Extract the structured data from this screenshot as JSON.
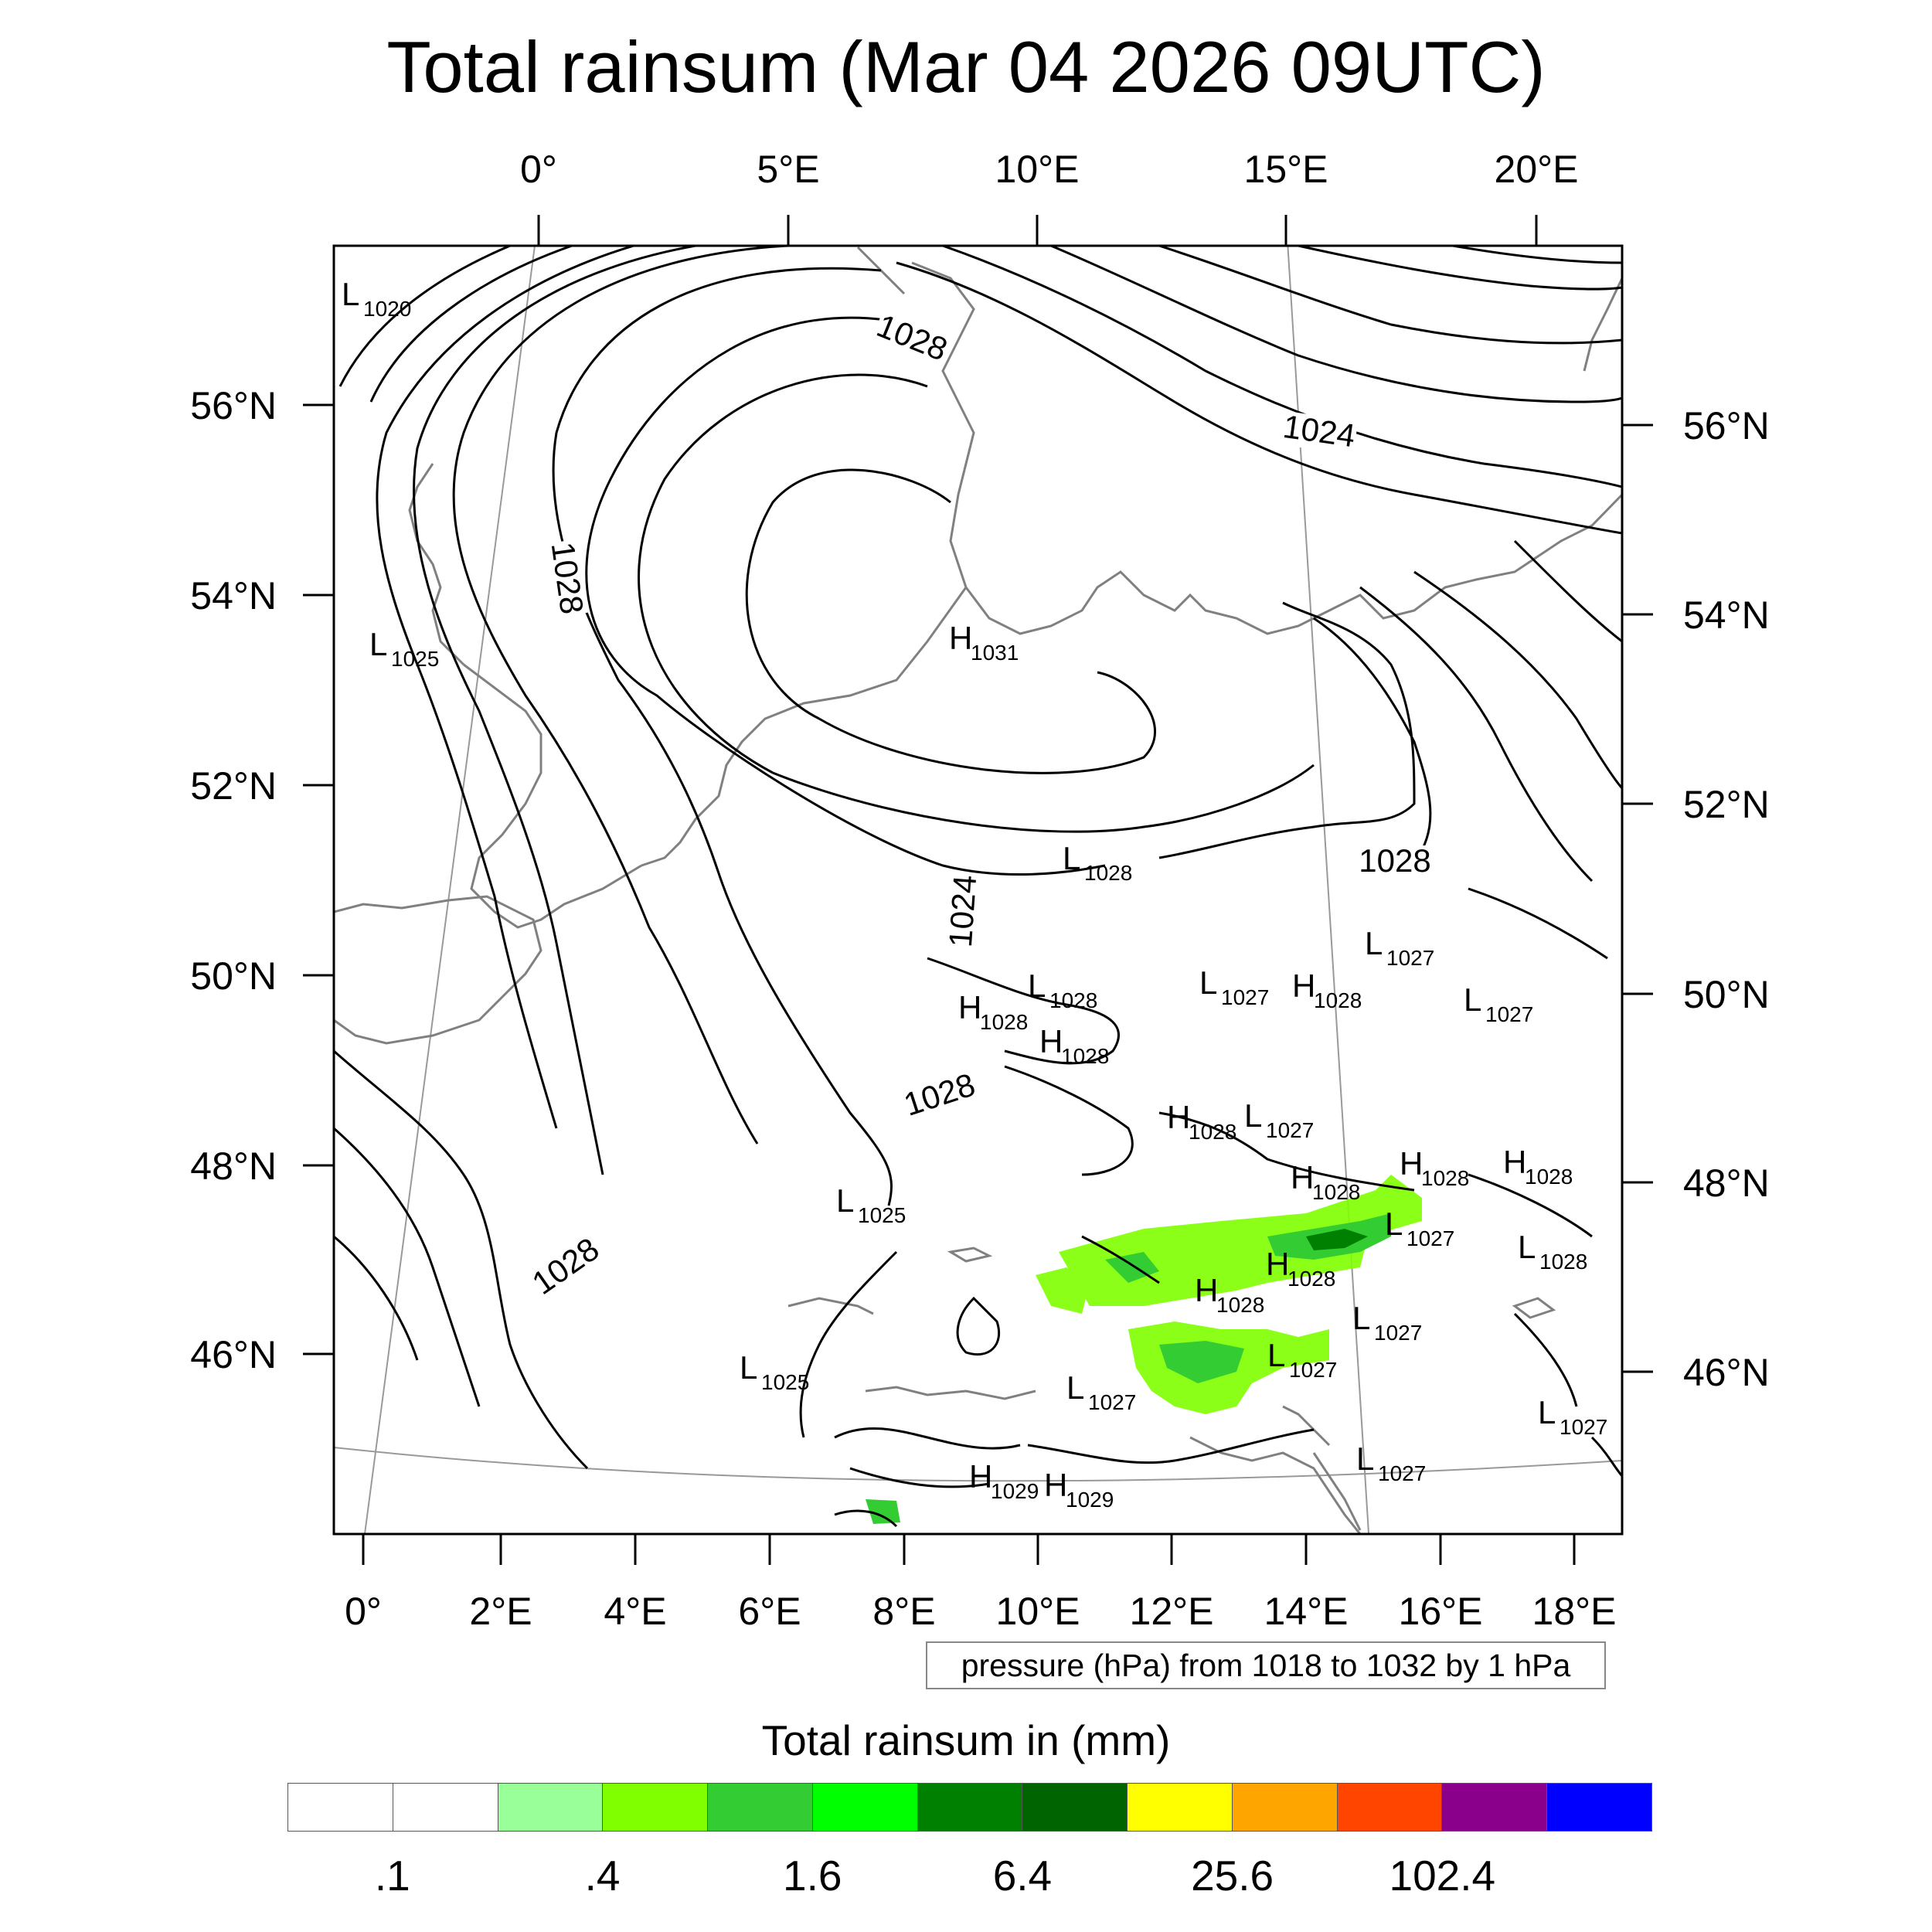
{
  "title": "Total rainsum (Mar 04 2026 09UTC)",
  "top_lon_labels": [
    "0°",
    "5°E",
    "10°E",
    "15°E",
    "20°E"
  ],
  "bottom_lon_labels": [
    "0°",
    "2°E",
    "4°E",
    "6°E",
    "8°E",
    "10°E",
    "12°E",
    "14°E",
    "16°E",
    "18°E"
  ],
  "left_lat_labels": [
    "56°N",
    "54°N",
    "52°N",
    "50°N",
    "48°N",
    "46°N"
  ],
  "right_lat_labels": [
    "56°N",
    "54°N",
    "52°N",
    "50°N",
    "48°N",
    "46°N"
  ],
  "pressure_centers": [
    {
      "type": "L",
      "value": "1020"
    },
    {
      "type": "L",
      "value": "1025"
    },
    {
      "type": "H",
      "value": "1031"
    },
    {
      "type": "L",
      "value": "1028"
    },
    {
      "type": "L",
      "value": "1027"
    },
    {
      "type": "L",
      "value": "1028"
    },
    {
      "type": "L",
      "value": "1027"
    },
    {
      "type": "H",
      "value": "1028"
    },
    {
      "type": "L",
      "value": "1027"
    },
    {
      "type": "H",
      "value": "1028"
    },
    {
      "type": "H",
      "value": "1028"
    },
    {
      "type": "H",
      "value": "1028"
    },
    {
      "type": "L",
      "value": "1027"
    },
    {
      "type": "H",
      "value": "1028"
    },
    {
      "type": "H",
      "value": "1028"
    },
    {
      "type": "H",
      "value": "1028"
    },
    {
      "type": "L",
      "value": "1025"
    },
    {
      "type": "L",
      "value": "1027"
    },
    {
      "type": "L",
      "value": "1028"
    },
    {
      "type": "H",
      "value": "1028"
    },
    {
      "type": "H",
      "value": "1028"
    },
    {
      "type": "L",
      "value": "1027"
    },
    {
      "type": "L",
      "value": "1025"
    },
    {
      "type": "L",
      "value": "1027"
    },
    {
      "type": "L",
      "value": "1027"
    },
    {
      "type": "L",
      "value": "1027"
    },
    {
      "type": "L",
      "value": "1027"
    },
    {
      "type": "H",
      "value": "1029"
    },
    {
      "type": "H",
      "value": "1029"
    }
  ],
  "contour_labels": [
    "1028",
    "1028",
    "1024",
    "1028",
    "1028",
    "1028",
    "1024"
  ],
  "info_text": "pressure (hPa) from 1018 to 1032 by 1 hPa",
  "colorbar": {
    "title": "Total rainsum in (mm)",
    "colors": [
      "#ffffff",
      "#ffffff",
      "#99ff99",
      "#80ff00",
      "#33cc33",
      "#00ff00",
      "#008000",
      "#006400",
      "#ffff00",
      "#ffa500",
      "#ff4500",
      "#8b008b",
      "#0000ff"
    ],
    "labels": [
      ".1",
      ".4",
      "1.6",
      "6.4",
      "25.6",
      "102.4"
    ]
  },
  "colors": {
    "contour": "#000000",
    "coastline": "#808080",
    "graticule": "#999999",
    "rain_light": "#80ff00",
    "rain_mid": "#33cc33",
    "rain_dark": "#008000"
  }
}
